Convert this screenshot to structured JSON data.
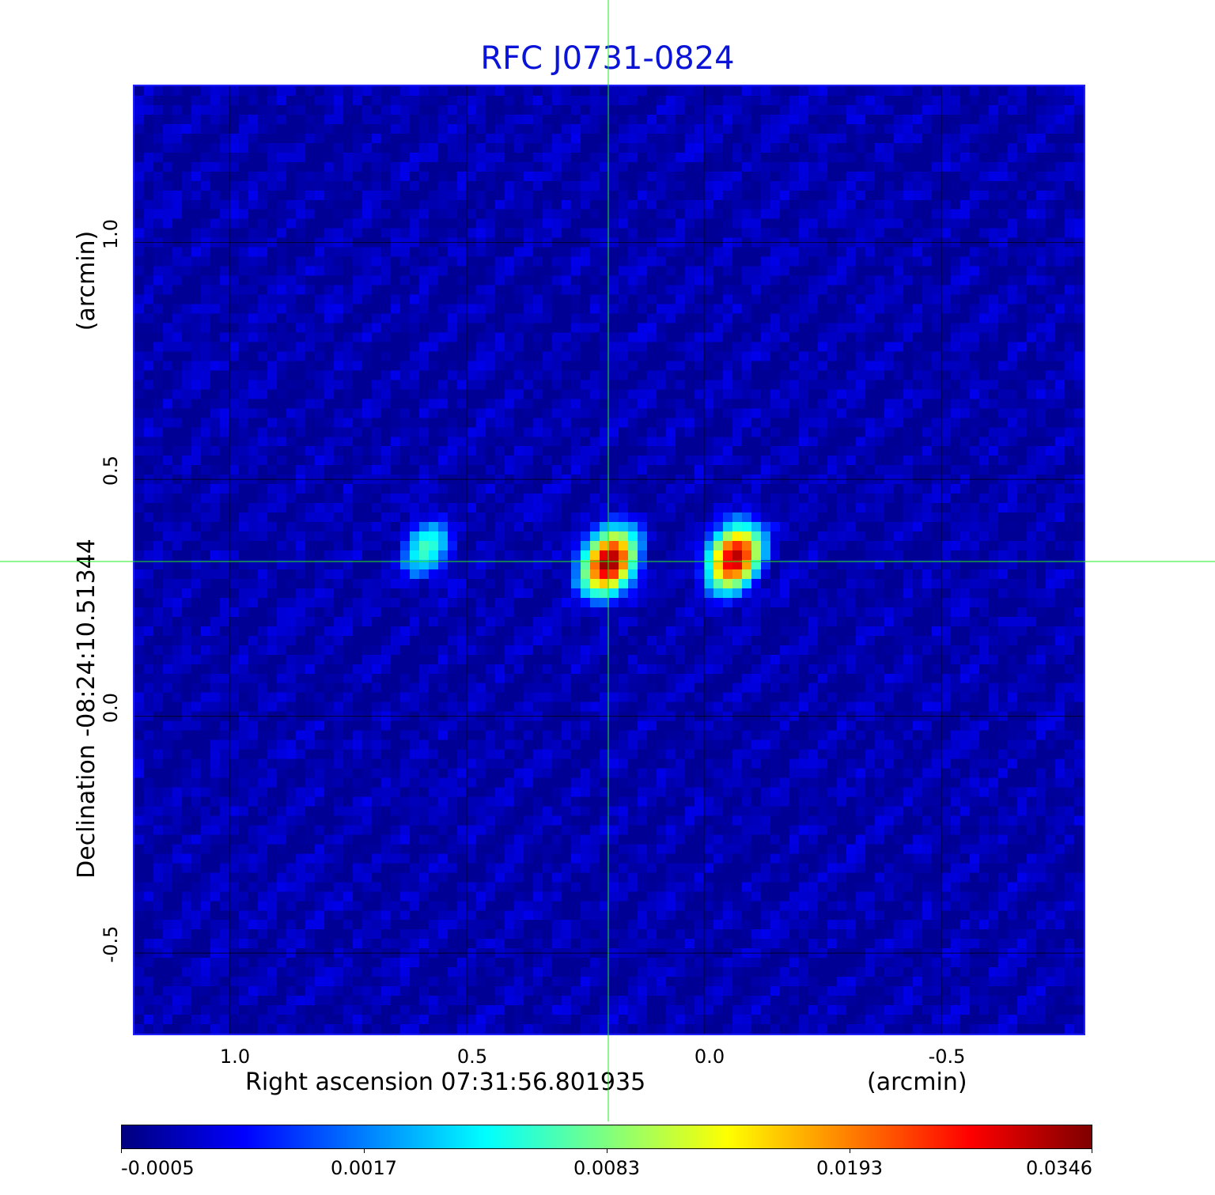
{
  "chart_data": {
    "type": "heatmap",
    "title": "RFC J0731-0824",
    "xlabel": "Right ascension  07:31:56.801935",
    "xunit": "(arcmin)",
    "ylabel": "Declination  -08:24:10.51344",
    "yunit": "(arcmin)",
    "xlim": [
      1.2,
      -0.8
    ],
    "ylim": [
      -0.67,
      1.33
    ],
    "x_ticks": [
      "1.0",
      "0.5",
      "0.0",
      "-0.5"
    ],
    "x_tick_values": [
      1.0,
      0.5,
      0.0,
      -0.5
    ],
    "y_ticks": [
      "1.0",
      "0.5",
      "0.0",
      "-0.5"
    ],
    "y_tick_values": [
      1.0,
      0.5,
      0.0,
      -0.5
    ],
    "grid": true,
    "crosshair": {
      "x": 0.2,
      "y": 0.325
    },
    "colormap": "jet",
    "colorbar_ticks": [
      "-0.0005",
      "0.0017",
      "0.0083",
      "0.0193",
      "0.0346"
    ],
    "colorbar_tick_values": [
      -0.0005,
      0.0017,
      0.0083,
      0.0193,
      0.0346
    ],
    "background_level": -0.0003,
    "sources": [
      {
        "x": 0.585,
        "y": 0.355,
        "peak": 0.0065,
        "sigma_x": 0.025,
        "sigma_y": 0.035
      },
      {
        "x": 0.2,
        "y": 0.325,
        "peak": 0.0346,
        "sigma_x": 0.027,
        "sigma_y": 0.038
      },
      {
        "x": -0.065,
        "y": 0.335,
        "peak": 0.032,
        "sigma_x": 0.027,
        "sigma_y": 0.038
      }
    ]
  },
  "colors": {
    "title": "#0a14d8",
    "crosshair": "#22ee22",
    "frame": "#2020ff"
  }
}
